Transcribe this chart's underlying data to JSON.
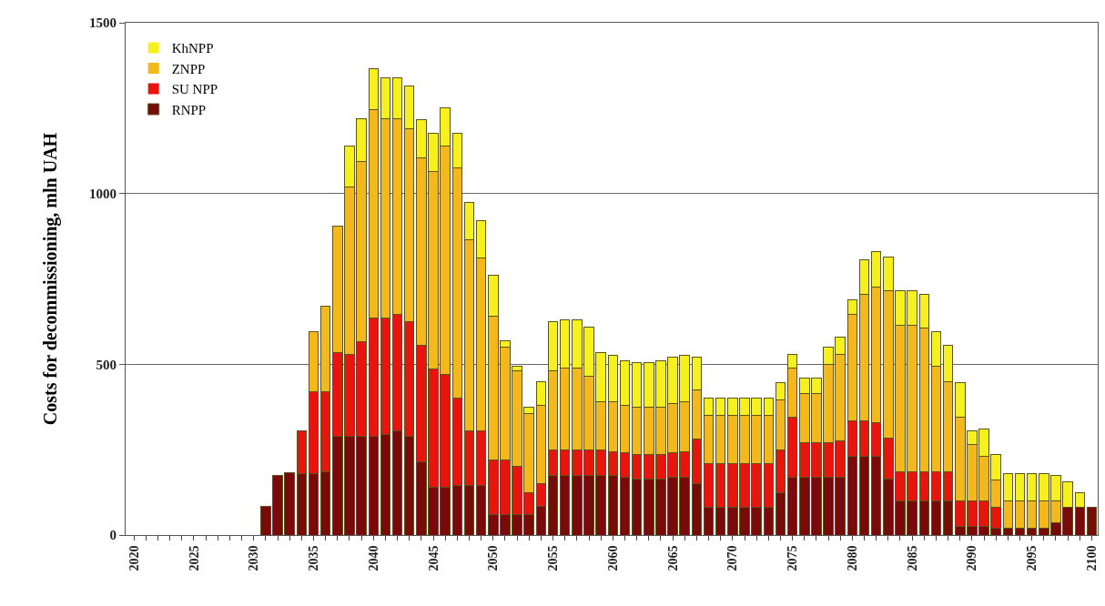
{
  "chart_data": {
    "type": "bar",
    "stacked": true,
    "ylabel": "Costs for decommissioning, mln UAH",
    "x": [
      2031,
      2032,
      2033,
      2034,
      2035,
      2036,
      2037,
      2038,
      2039,
      2040,
      2041,
      2042,
      2043,
      2044,
      2045,
      2046,
      2047,
      2048,
      2049,
      2050,
      2051,
      2052,
      2053,
      2054,
      2055,
      2056,
      2057,
      2058,
      2059,
      2060,
      2061,
      2062,
      2063,
      2064,
      2065,
      2066,
      2067,
      2068,
      2069,
      2070,
      2071,
      2072,
      2073,
      2074,
      2075,
      2076,
      2077,
      2078,
      2079,
      2080,
      2081,
      2082,
      2083,
      2084,
      2085,
      2086,
      2087,
      2088,
      2089,
      2090,
      2091,
      2092,
      2093,
      2094,
      2095,
      2096,
      2097,
      2098,
      2099,
      2100
    ],
    "series": [
      {
        "name": "RNPP",
        "color": "#7a0a0a",
        "values": [
          85,
          175,
          183,
          180,
          180,
          185,
          290,
          290,
          290,
          290,
          295,
          305,
          290,
          215,
          140,
          140,
          145,
          145,
          145,
          60,
          60,
          60,
          60,
          85,
          175,
          175,
          175,
          175,
          175,
          175,
          170,
          165,
          165,
          165,
          170,
          170,
          150,
          80,
          80,
          80,
          80,
          80,
          80,
          125,
          170,
          170,
          170,
          170,
          170,
          230,
          230,
          230,
          165,
          100,
          100,
          100,
          100,
          100,
          25,
          25,
          25,
          20,
          20,
          20,
          20,
          20,
          35,
          80,
          80,
          80
        ]
      },
      {
        "name": "SU NPP",
        "color": "#e8140e",
        "values": [
          0,
          0,
          0,
          125,
          240,
          235,
          245,
          240,
          275,
          345,
          340,
          340,
          335,
          340,
          345,
          330,
          255,
          160,
          160,
          160,
          160,
          140,
          65,
          65,
          75,
          75,
          75,
          75,
          75,
          70,
          70,
          70,
          70,
          70,
          70,
          75,
          130,
          130,
          130,
          130,
          130,
          130,
          130,
          125,
          175,
          100,
          100,
          100,
          105,
          105,
          105,
          100,
          120,
          85,
          85,
          85,
          85,
          85,
          75,
          75,
          75,
          60,
          0,
          0,
          0,
          0,
          0,
          0,
          0,
          0
        ]
      },
      {
        "name": "ZNPP",
        "color": "#f2b81c",
        "values": [
          0,
          0,
          0,
          0,
          175,
          250,
          370,
          490,
          530,
          610,
          585,
          575,
          565,
          550,
          580,
          670,
          675,
          560,
          505,
          420,
          330,
          280,
          230,
          230,
          230,
          240,
          240,
          215,
          140,
          145,
          140,
          140,
          140,
          140,
          145,
          145,
          145,
          140,
          140,
          140,
          140,
          140,
          140,
          145,
          145,
          145,
          145,
          230,
          255,
          310,
          370,
          395,
          430,
          430,
          430,
          420,
          310,
          265,
          245,
          165,
          130,
          80,
          80,
          80,
          80,
          80,
          65,
          0,
          0,
          0
        ]
      },
      {
        "name": "KhNPP",
        "color": "#f5f01e",
        "values": [
          0,
          0,
          0,
          0,
          0,
          0,
          0,
          120,
          125,
          120,
          120,
          120,
          125,
          110,
          110,
          110,
          100,
          110,
          110,
          120,
          20,
          15,
          20,
          70,
          145,
          140,
          140,
          145,
          145,
          135,
          130,
          130,
          130,
          135,
          135,
          135,
          95,
          50,
          50,
          50,
          50,
          50,
          50,
          50,
          40,
          45,
          45,
          50,
          50,
          45,
          100,
          105,
          100,
          100,
          100,
          100,
          100,
          105,
          100,
          40,
          80,
          75,
          80,
          80,
          80,
          80,
          75,
          75,
          45,
          0
        ]
      }
    ],
    "ylim": [
      0,
      1500
    ],
    "yticks": [
      0,
      500,
      1000,
      1500
    ],
    "xlim": [
      2019.3,
      2100.5
    ],
    "xticks": [
      2020,
      {
        "value": 2021,
        "label": null
      },
      {
        "value": 2022,
        "label": null
      },
      {
        "value": 2023,
        "label": null
      },
      {
        "value": 2024,
        "label": null
      },
      2025,
      {
        "value": 2026,
        "label": null
      },
      {
        "value": 2027,
        "label": null
      },
      {
        "value": 2028,
        "label": null
      },
      {
        "value": 2029,
        "label": null
      },
      2030,
      {
        "value": 2031,
        "label": null
      },
      {
        "value": 2032,
        "label": null
      },
      {
        "value": 2033,
        "label": null
      },
      {
        "value": 2034,
        "label": null
      },
      2035,
      {
        "value": 2036,
        "label": null
      },
      {
        "value": 2037,
        "label": null
      },
      {
        "value": 2038,
        "label": null
      },
      {
        "value": 2039,
        "label": null
      },
      2040,
      {
        "value": 2041,
        "label": null
      },
      {
        "value": 2042,
        "label": null
      },
      {
        "value": 2043,
        "label": null
      },
      {
        "value": 2044,
        "label": null
      },
      2045,
      {
        "value": 2046,
        "label": null
      },
      {
        "value": 2047,
        "label": null
      },
      {
        "value": 2048,
        "label": null
      },
      {
        "value": 2049,
        "label": null
      },
      2050,
      {
        "value": 2051,
        "label": null
      },
      {
        "value": 2052,
        "label": null
      },
      {
        "value": 2053,
        "label": null
      },
      {
        "value": 2054,
        "label": null
      },
      2055,
      {
        "value": 2056,
        "label": null
      },
      {
        "value": 2057,
        "label": null
      },
      {
        "value": 2058,
        "label": null
      },
      {
        "value": 2059,
        "label": null
      },
      2060,
      {
        "value": 2061,
        "label": null
      },
      {
        "value": 2062,
        "label": null
      },
      {
        "value": 2063,
        "label": null
      },
      {
        "value": 2064,
        "label": null
      },
      2065,
      {
        "value": 2066,
        "label": null
      },
      {
        "value": 2067,
        "label": null
      },
      {
        "value": 2068,
        "label": null
      },
      {
        "value": 2069,
        "label": null
      },
      2070,
      {
        "value": 2071,
        "label": null
      },
      {
        "value": 2072,
        "label": null
      },
      {
        "value": 2073,
        "label": null
      },
      {
        "value": 2074,
        "label": null
      },
      2075,
      {
        "value": 2076,
        "label": null
      },
      {
        "value": 2077,
        "label": null
      },
      {
        "value": 2078,
        "label": null
      },
      {
        "value": 2079,
        "label": null
      },
      2080,
      {
        "value": 2081,
        "label": null
      },
      {
        "value": 2082,
        "label": null
      },
      {
        "value": 2083,
        "label": null
      },
      {
        "value": 2084,
        "label": null
      },
      2085,
      {
        "value": 2086,
        "label": null
      },
      {
        "value": 2087,
        "label": null
      },
      {
        "value": 2088,
        "label": null
      },
      {
        "value": 2089,
        "label": null
      },
      2090,
      {
        "value": 2091,
        "label": null
      },
      {
        "value": 2092,
        "label": null
      },
      {
        "value": 2093,
        "label": null
      },
      {
        "value": 2094,
        "label": null
      },
      2095,
      {
        "value": 2096,
        "label": null
      },
      {
        "value": 2097,
        "label": null
      },
      {
        "value": 2098,
        "label": null
      },
      {
        "value": 2099,
        "label": null
      },
      2100
    ],
    "grid": "y",
    "legend": "top left"
  }
}
